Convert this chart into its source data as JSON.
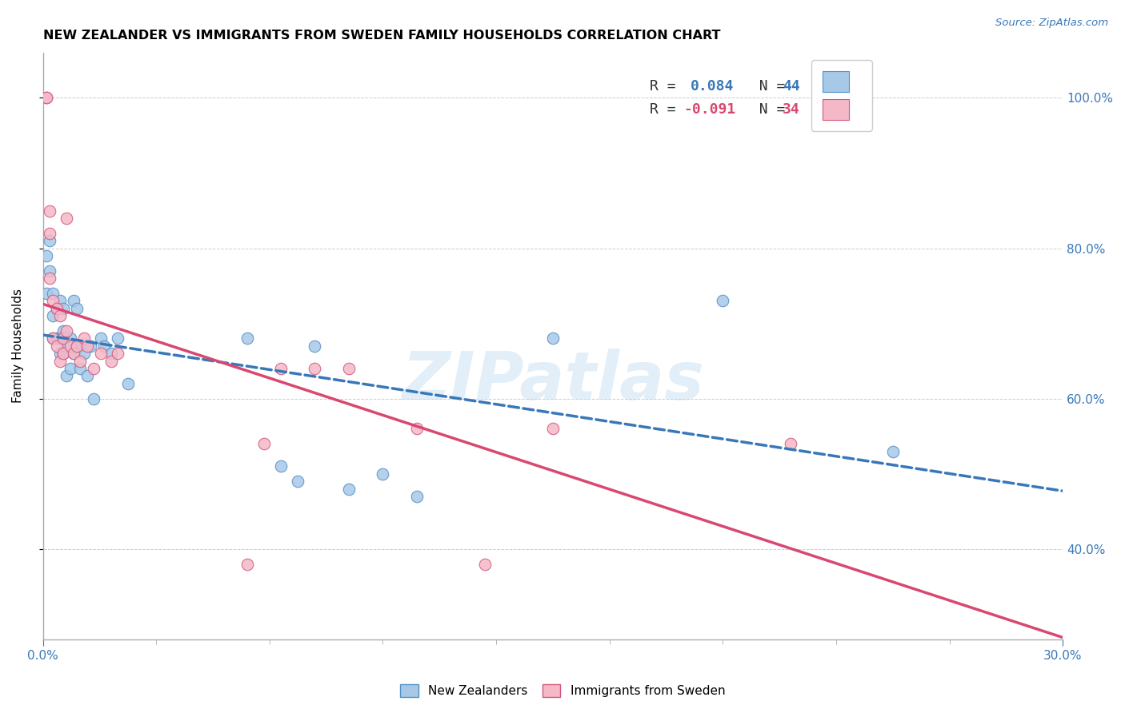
{
  "title": "NEW ZEALANDER VS IMMIGRANTS FROM SWEDEN FAMILY HOUSEHOLDS CORRELATION CHART",
  "source": "Source: ZipAtlas.com",
  "ylabel": "Family Households",
  "right_ytick_vals": [
    0.4,
    0.6,
    0.8,
    1.0
  ],
  "right_ytick_labels": [
    "40.0%",
    "60.0%",
    "80.0%",
    "100.0%"
  ],
  "legend_R_blue": "0.084",
  "legend_N_blue": "44",
  "legend_R_pink": "-0.091",
  "legend_N_pink": "34",
  "blue_color": "#a8c8e8",
  "blue_edge_color": "#5090c8",
  "pink_color": "#f5b8c8",
  "pink_edge_color": "#d05878",
  "trend_blue_color": "#3878b8",
  "trend_pink_color": "#d84870",
  "watermark": "ZIPatlas",
  "blue_scatter_x": [
    0.001,
    0.001,
    0.002,
    0.002,
    0.003,
    0.003,
    0.003,
    0.004,
    0.004,
    0.005,
    0.005,
    0.005,
    0.006,
    0.006,
    0.006,
    0.007,
    0.007,
    0.008,
    0.008,
    0.009,
    0.009,
    0.01,
    0.01,
    0.011,
    0.011,
    0.012,
    0.013,
    0.014,
    0.015,
    0.017,
    0.018,
    0.02,
    0.022,
    0.025,
    0.06,
    0.07,
    0.075,
    0.08,
    0.09,
    0.1,
    0.11,
    0.15,
    0.2,
    0.25
  ],
  "blue_scatter_y": [
    0.74,
    0.79,
    0.77,
    0.81,
    0.68,
    0.71,
    0.74,
    0.68,
    0.72,
    0.66,
    0.68,
    0.73,
    0.66,
    0.69,
    0.72,
    0.63,
    0.67,
    0.64,
    0.68,
    0.66,
    0.73,
    0.67,
    0.72,
    0.64,
    0.67,
    0.66,
    0.63,
    0.67,
    0.6,
    0.68,
    0.67,
    0.66,
    0.68,
    0.62,
    0.68,
    0.51,
    0.49,
    0.67,
    0.48,
    0.5,
    0.47,
    0.68,
    0.73,
    0.53
  ],
  "pink_scatter_x": [
    0.001,
    0.001,
    0.002,
    0.002,
    0.002,
    0.003,
    0.003,
    0.004,
    0.004,
    0.005,
    0.005,
    0.006,
    0.006,
    0.007,
    0.007,
    0.008,
    0.009,
    0.01,
    0.011,
    0.012,
    0.013,
    0.015,
    0.017,
    0.02,
    0.022,
    0.06,
    0.065,
    0.07,
    0.08,
    0.09,
    0.11,
    0.13,
    0.15,
    0.22
  ],
  "pink_scatter_y": [
    1.0,
    1.0,
    0.76,
    0.82,
    0.85,
    0.68,
    0.73,
    0.67,
    0.72,
    0.65,
    0.71,
    0.66,
    0.68,
    0.69,
    0.84,
    0.67,
    0.66,
    0.67,
    0.65,
    0.68,
    0.67,
    0.64,
    0.66,
    0.65,
    0.66,
    0.38,
    0.54,
    0.64,
    0.64,
    0.64,
    0.56,
    0.38,
    0.56,
    0.54
  ],
  "xmin": 0.0,
  "xmax": 0.3,
  "ymin": 0.28,
  "ymax": 1.06,
  "figsize": [
    14.06,
    8.92
  ],
  "dpi": 100
}
